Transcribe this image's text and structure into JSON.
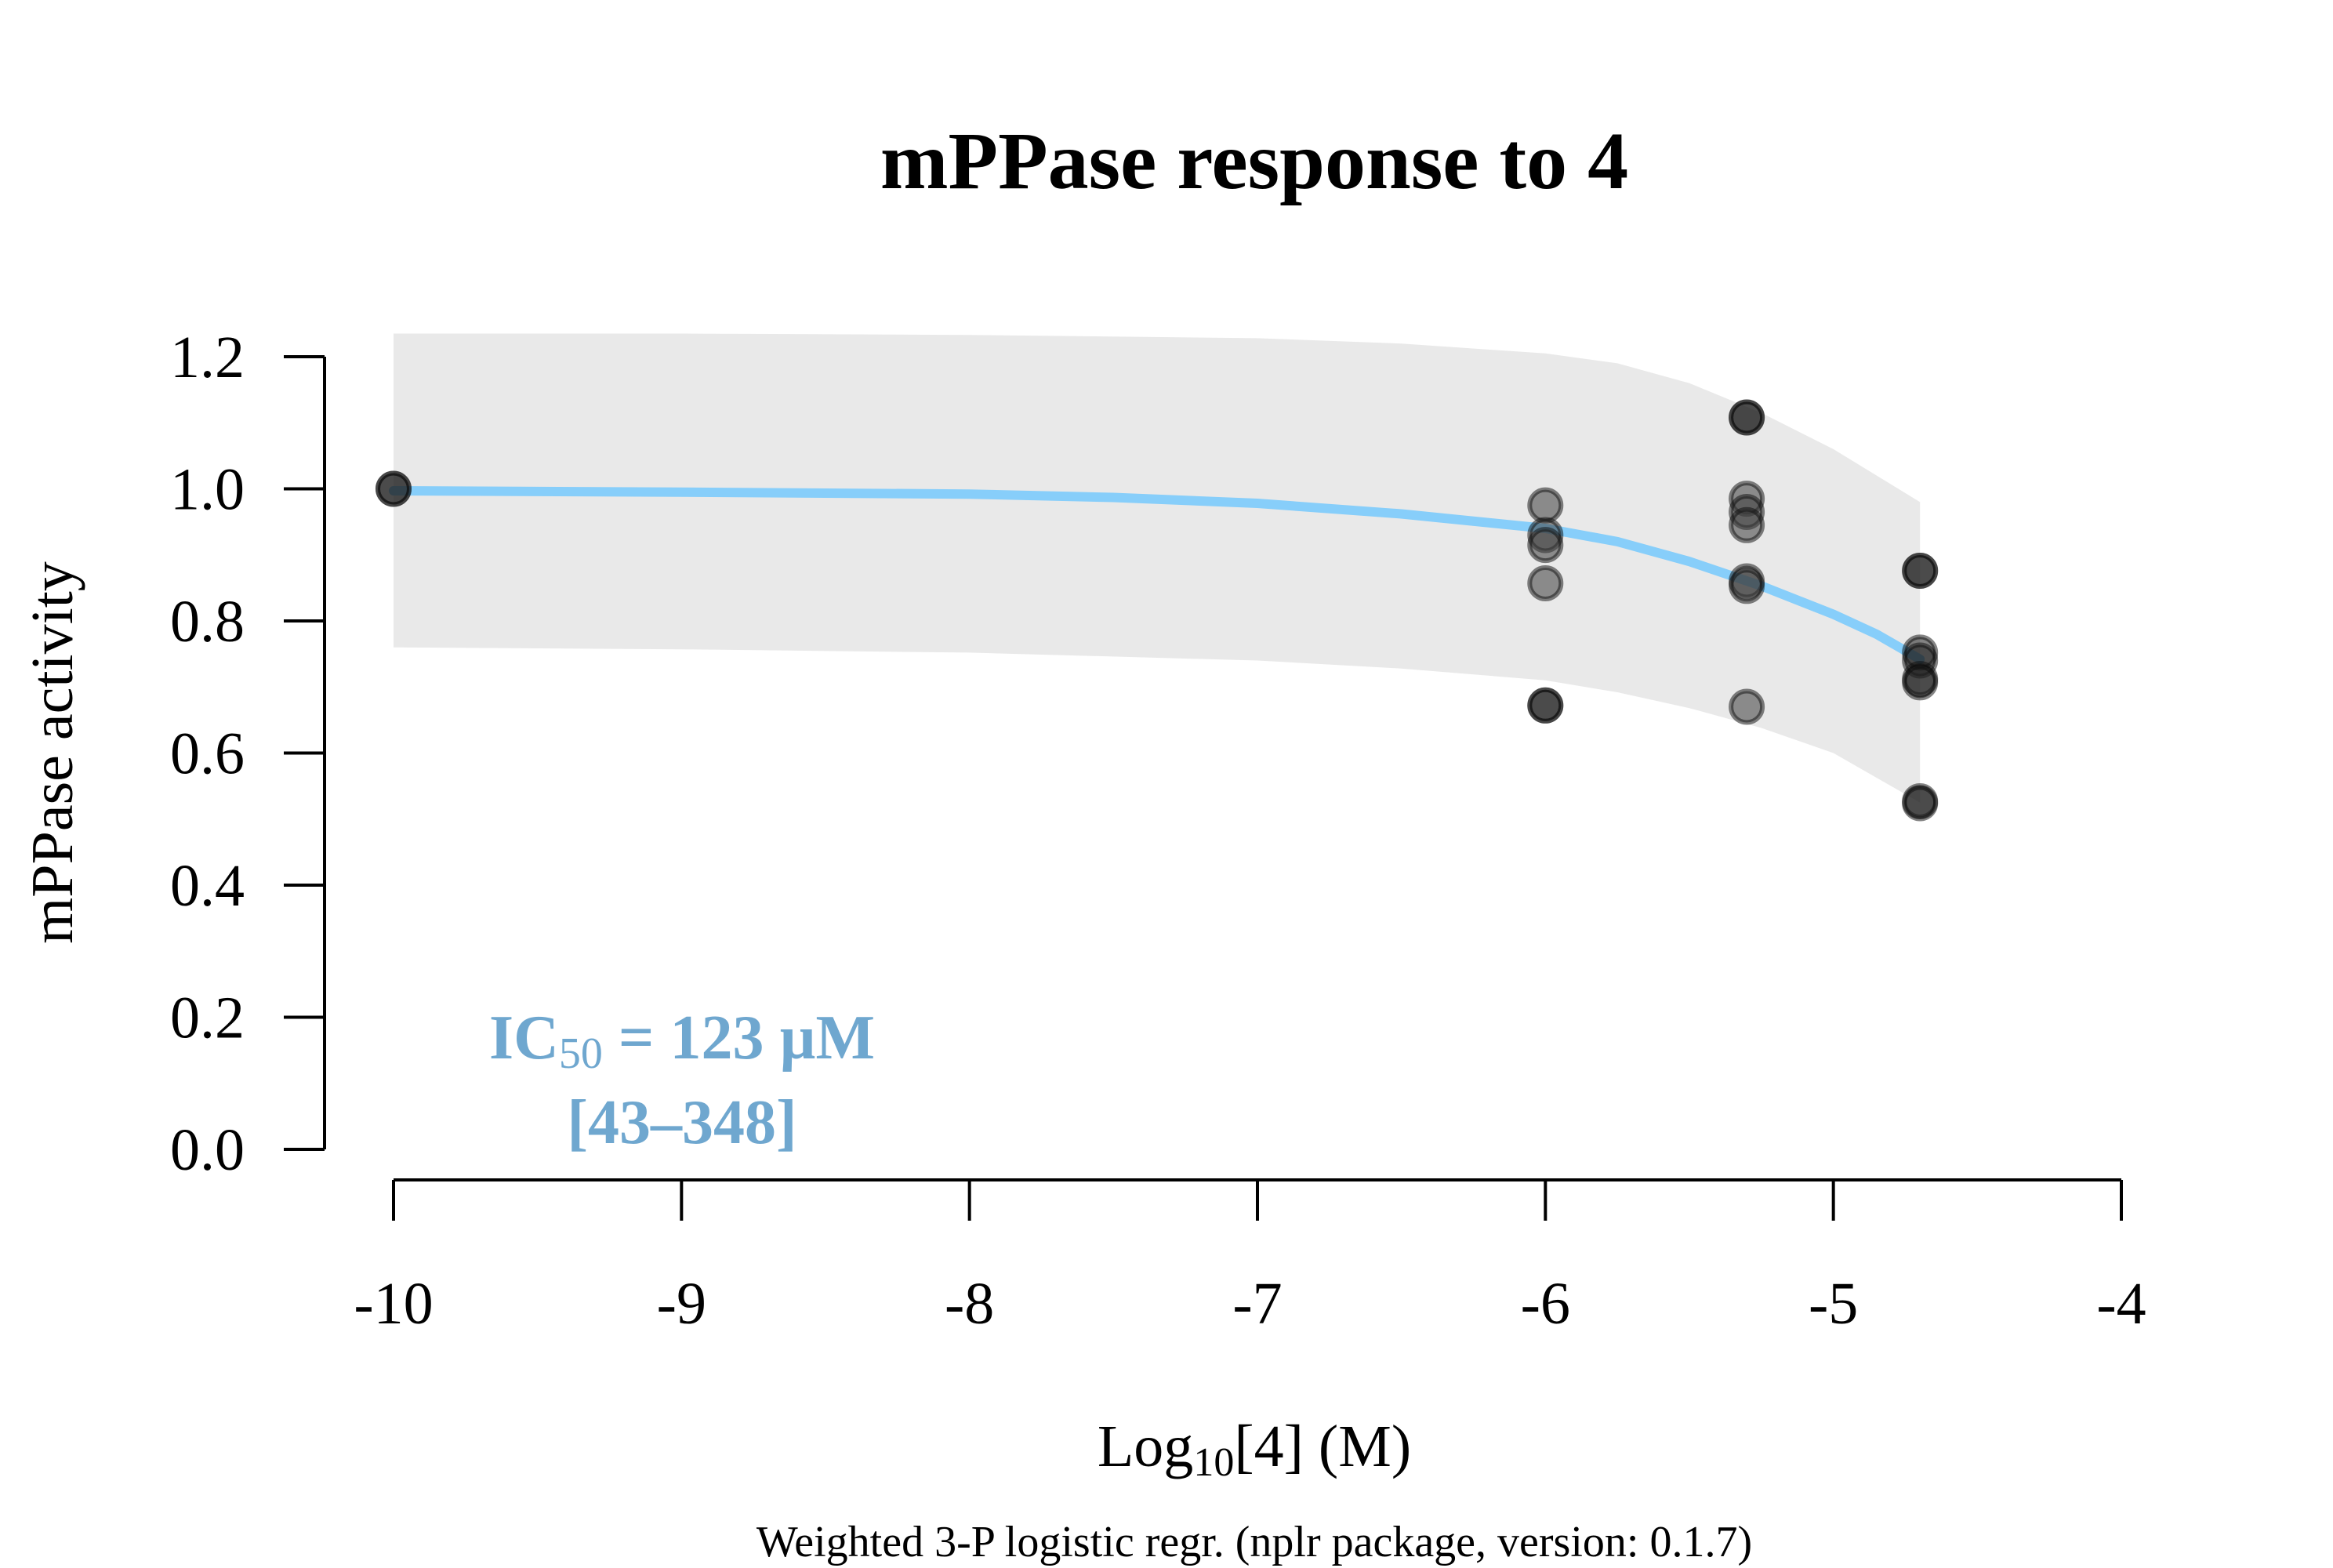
{
  "chart_data": {
    "type": "scatter",
    "title": "mPPase response to 4",
    "xlabel": {
      "prefix": "Log",
      "sub": "10",
      "suffix": "[4] (M)"
    },
    "ylabel": "mPPase activity",
    "footnote": "Weighted 3-P logistic regr. (nplr package, version: 0.1.7)",
    "annotation": {
      "ic_prefix": "IC",
      "ic_sub": "50",
      "ic_value": " = 123 µM",
      "ci": "[43–348]",
      "color": "#6fa7cf"
    },
    "xlim": [
      -10,
      -4
    ],
    "ylim": [
      0,
      1.2
    ],
    "x_ticks": [
      -10,
      -9,
      -8,
      -7,
      -6,
      -5,
      -4
    ],
    "x_tick_labels": [
      "-10",
      "-9",
      "-8",
      "-7",
      "-6",
      "-5",
      "-4"
    ],
    "y_ticks": [
      0,
      0.2,
      0.4,
      0.6,
      0.8,
      1.0,
      1.2
    ],
    "y_tick_labels": [
      "0.0",
      "0.2",
      "0.4",
      "0.6",
      "0.8",
      "1.0",
      "1.2"
    ],
    "points": [
      {
        "x": -10,
        "y": 1.0,
        "dark": true
      },
      {
        "x": -10,
        "y": 1.0,
        "dark": true
      },
      {
        "x": -6,
        "y": 0.975,
        "dark": false
      },
      {
        "x": -6,
        "y": 0.93,
        "dark": false
      },
      {
        "x": -6,
        "y": 0.915,
        "dark": false
      },
      {
        "x": -6,
        "y": 0.857,
        "dark": false
      },
      {
        "x": -6,
        "y": 0.672,
        "dark": true
      },
      {
        "x": -6,
        "y": 0.672,
        "dark": true
      },
      {
        "x": -5.301,
        "y": 1.108,
        "dark": true
      },
      {
        "x": -5.301,
        "y": 1.108,
        "dark": true
      },
      {
        "x": -5.301,
        "y": 0.985,
        "dark": false
      },
      {
        "x": -5.301,
        "y": 0.965,
        "dark": false
      },
      {
        "x": -5.301,
        "y": 0.945,
        "dark": false
      },
      {
        "x": -5.301,
        "y": 0.86,
        "dark": false
      },
      {
        "x": -5.301,
        "y": 0.853,
        "dark": false
      },
      {
        "x": -5.301,
        "y": 0.67,
        "dark": false
      },
      {
        "x": -4.699,
        "y": 0.876,
        "dark": true
      },
      {
        "x": -4.699,
        "y": 0.876,
        "dark": true
      },
      {
        "x": -4.699,
        "y": 0.752,
        "dark": true
      },
      {
        "x": -4.699,
        "y": 0.74,
        "dark": true
      },
      {
        "x": -4.699,
        "y": 0.712,
        "dark": true
      },
      {
        "x": -4.699,
        "y": 0.707,
        "dark": true
      },
      {
        "x": -4.699,
        "y": 0.527,
        "dark": true
      },
      {
        "x": -4.699,
        "y": 0.524,
        "dark": true
      }
    ],
    "fit_curve": {
      "color": "#87cefa",
      "x": [
        -10,
        -9,
        -8,
        -7.5,
        -7,
        -6.5,
        -6,
        -5.75,
        -5.5,
        -5.25,
        -5,
        -4.85,
        -4.699
      ],
      "y": [
        0.997,
        0.995,
        0.992,
        0.987,
        0.978,
        0.962,
        0.94,
        0.92,
        0.89,
        0.853,
        0.81,
        0.78,
        0.742
      ]
    },
    "confidence_band": {
      "color": "#e9e9e9",
      "x": [
        -10,
        -9,
        -8,
        -7,
        -6.5,
        -6,
        -5.75,
        -5.5,
        -5.25,
        -5,
        -4.699
      ],
      "upper": [
        1.235,
        1.235,
        1.233,
        1.228,
        1.22,
        1.205,
        1.19,
        1.16,
        1.115,
        1.06,
        0.98
      ],
      "lower": [
        0.76,
        0.757,
        0.752,
        0.74,
        0.728,
        0.71,
        0.692,
        0.668,
        0.638,
        0.6,
        0.525
      ]
    },
    "grid": false,
    "legend": "none"
  }
}
